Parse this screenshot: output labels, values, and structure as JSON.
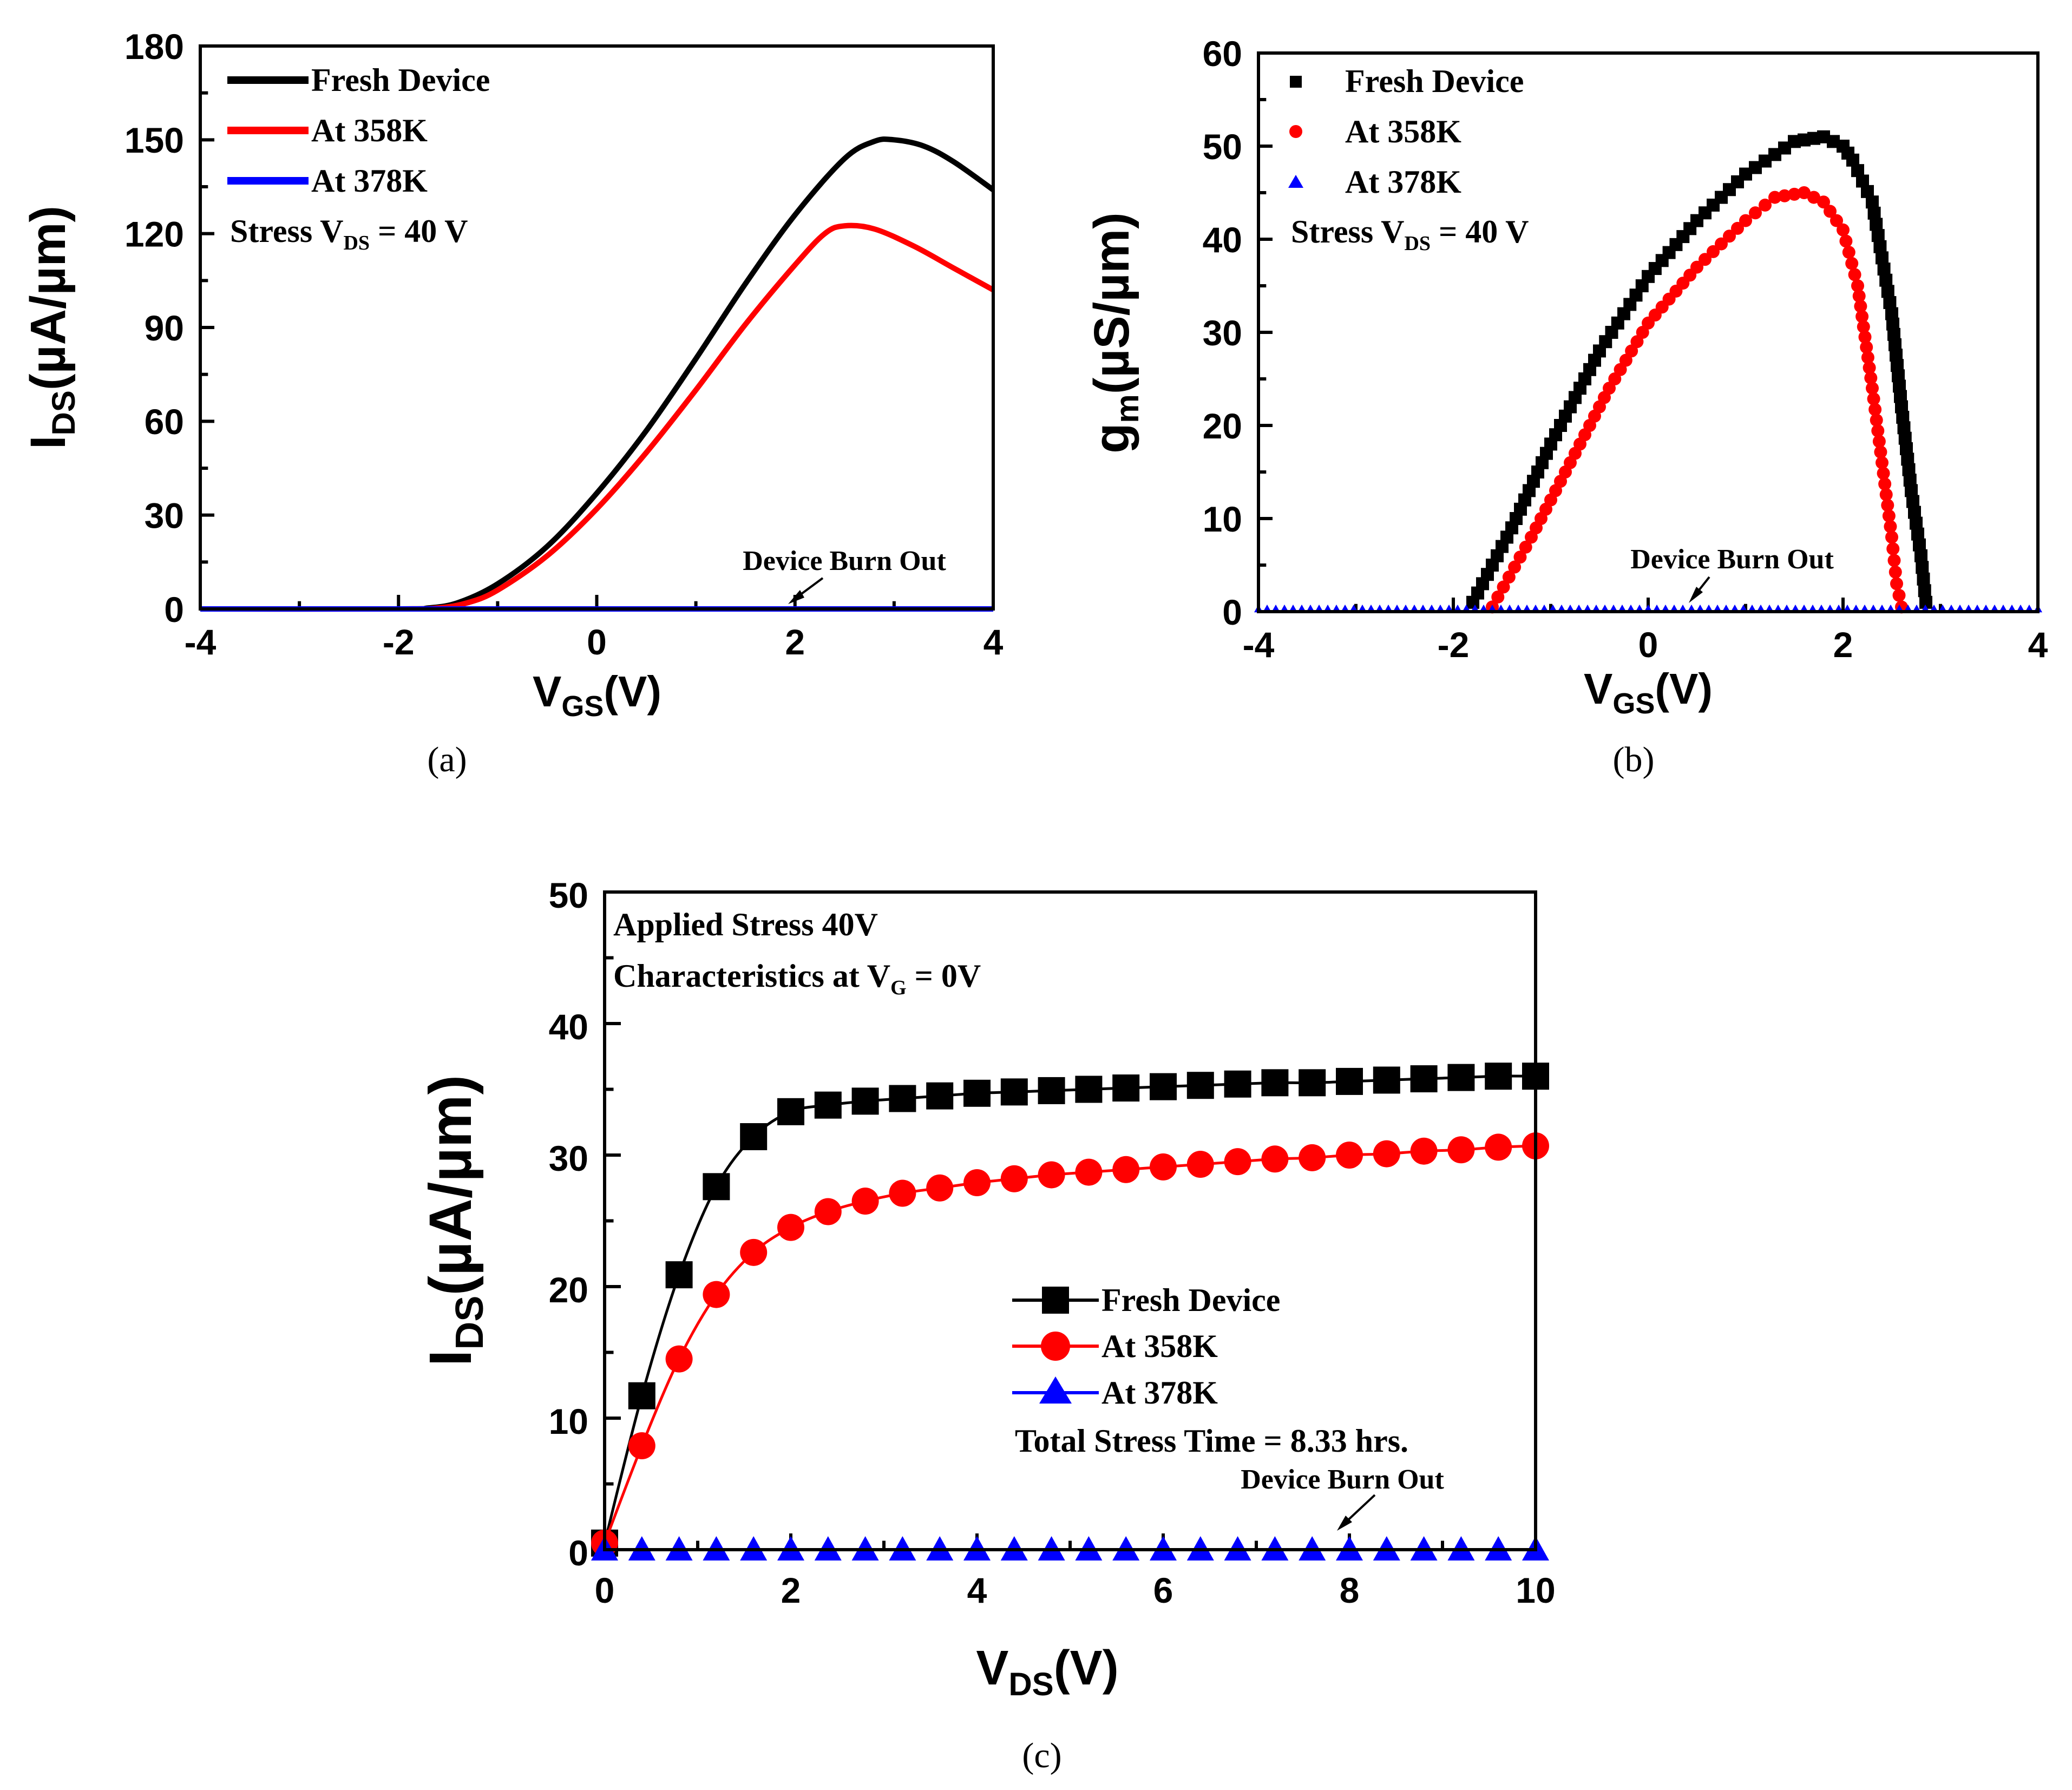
{
  "chart_data": [
    {
      "id": "a",
      "type": "line",
      "caption": "(a)",
      "xlabel": "V",
      "xlabel_sub": "GS",
      "xlabel_unit": "(V)",
      "ylabel": "I",
      "ylabel_sub": "DS",
      "ylabel_unit": "(µA/µm)",
      "xlim": [
        -4,
        4
      ],
      "ylim": [
        0,
        180
      ],
      "xticks": [
        -4,
        -2,
        0,
        2,
        4
      ],
      "yticks": [
        0,
        30,
        60,
        90,
        120,
        150,
        180
      ],
      "stress_label": "Stress V",
      "stress_sub": "DS",
      "stress_value": " = 40 V",
      "annotation": "Device Burn Out",
      "series": [
        {
          "name": "Fresh Device",
          "color": "#000000",
          "x": [
            -4,
            -2,
            -1.7,
            -1.4,
            -1.0,
            -0.5,
            0,
            0.5,
            1.0,
            1.5,
            2.0,
            2.5,
            2.8,
            3.0,
            3.3,
            3.6,
            4.0
          ],
          "y": [
            0,
            0,
            0.3,
            2,
            8,
            20,
            37,
            57,
            80,
            104,
            126,
            144,
            149.5,
            150,
            148,
            143,
            134
          ]
        },
        {
          "name": "At 358K",
          "color": "#ff0000",
          "x": [
            -4,
            -2,
            -1.6,
            -1.3,
            -1.0,
            -0.5,
            0,
            0.5,
            1.0,
            1.5,
            2.0,
            2.3,
            2.5,
            2.8,
            3.2,
            3.6,
            4.0
          ],
          "y": [
            0,
            0,
            0.3,
            2,
            6,
            17,
            32,
            50,
            70,
            91,
            110,
            120,
            122.5,
            121.5,
            116,
            109,
            102
          ]
        },
        {
          "name": "At 378K",
          "color": "#0000ff",
          "x": [
            -4,
            4
          ],
          "y": [
            0,
            0
          ]
        }
      ]
    },
    {
      "id": "b",
      "type": "scatter",
      "caption": "(b)",
      "xlabel": "V",
      "xlabel_sub": "GS",
      "xlabel_unit": "(V)",
      "ylabel": "g",
      "ylabel_sub": "m",
      "ylabel_unit": "(µS/µm)",
      "xlim": [
        -4,
        4
      ],
      "ylim": [
        0,
        60
      ],
      "xticks": [
        -4,
        -2,
        0,
        2,
        4
      ],
      "yticks": [
        0,
        10,
        20,
        30,
        40,
        50,
        60
      ],
      "stress_label": "Stress V",
      "stress_sub": "DS",
      "stress_value": " = 40 V",
      "annotation": "Device Burn Out",
      "series": [
        {
          "name": "Fresh Device",
          "color": "#000000",
          "marker": "square",
          "x": [
            -1.8,
            -1.4,
            -1.0,
            -0.5,
            0,
            0.5,
            1.0,
            1.5,
            1.8,
            2.0,
            2.1,
            2.3,
            2.5,
            2.6,
            2.7,
            2.8,
            2.85
          ],
          "y": [
            1,
            9,
            18,
            28,
            36,
            42,
            47,
            50.5,
            51,
            50,
            48.5,
            44,
            32,
            22,
            13,
            6,
            1
          ]
        },
        {
          "name": "At 358K",
          "color": "#ff0000",
          "marker": "circle",
          "x": [
            -1.6,
            -1.2,
            -0.8,
            -0.4,
            0,
            0.5,
            1.0,
            1.3,
            1.6,
            1.8,
            2.0,
            2.15,
            2.3,
            2.4,
            2.5,
            2.55,
            2.6
          ],
          "y": [
            0.5,
            8,
            16,
            24,
            31,
            37,
            42,
            44.5,
            45,
            44,
            41,
            35,
            24,
            16,
            8,
            3,
            0.5
          ]
        },
        {
          "name": "At 378K",
          "color": "#0000ff",
          "marker": "triangle",
          "x": [
            -4,
            4
          ],
          "y": [
            0.3,
            0.3
          ]
        }
      ]
    },
    {
      "id": "c",
      "type": "line",
      "caption": "(c)",
      "xlabel": "V",
      "xlabel_sub": "DS",
      "xlabel_unit": "(V)",
      "ylabel": "I",
      "ylabel_sub": "DS",
      "ylabel_unit": "(µA/µm)",
      "xlim": [
        0,
        10
      ],
      "ylim": [
        0,
        50
      ],
      "xticks": [
        0,
        2,
        4,
        6,
        8,
        10
      ],
      "yticks": [
        0,
        10,
        20,
        30,
        40,
        50
      ],
      "title_line1": "Applied Stress 40V",
      "title_line2": "Characteristics at V",
      "title_line2_sub": "G",
      "title_line2_value": " = 0V",
      "stress_time": "Total Stress Time = 8.33 hrs.",
      "annotation": "Device Burn Out",
      "x": [
        0,
        0.4,
        0.8,
        1.2,
        1.6,
        2.0,
        2.4,
        2.8,
        3.2,
        3.6,
        4.0,
        4.4,
        4.8,
        5.2,
        5.6,
        6.0,
        6.4,
        6.8,
        7.2,
        7.6,
        8.0,
        8.4,
        8.8,
        9.2,
        9.6,
        10.0
      ],
      "series": [
        {
          "name": "Fresh Device",
          "color": "#000000",
          "marker": "square",
          "y": [
            0.5,
            11.7,
            20.9,
            27.6,
            31.4,
            33.3,
            33.8,
            34.1,
            34.3,
            34.5,
            34.7,
            34.8,
            34.9,
            35.0,
            35.1,
            35.2,
            35.3,
            35.4,
            35.5,
            35.5,
            35.6,
            35.7,
            35.8,
            35.9,
            36.0,
            36.0
          ]
        },
        {
          "name": "At 358K",
          "color": "#ff0000",
          "marker": "circle",
          "y": [
            0.5,
            7.9,
            14.5,
            19.4,
            22.6,
            24.5,
            25.7,
            26.5,
            27.1,
            27.5,
            27.9,
            28.2,
            28.5,
            28.7,
            28.9,
            29.1,
            29.3,
            29.5,
            29.7,
            29.8,
            30.0,
            30.1,
            30.3,
            30.4,
            30.6,
            30.7
          ]
        },
        {
          "name": "At 378K",
          "color": "#0000ff",
          "marker": "triangle",
          "y": [
            0,
            0,
            0,
            0,
            0,
            0,
            0,
            0,
            0,
            0,
            0,
            0,
            0,
            0,
            0,
            0,
            0,
            0,
            0,
            0,
            0,
            0,
            0,
            0,
            0,
            0
          ]
        }
      ]
    }
  ]
}
